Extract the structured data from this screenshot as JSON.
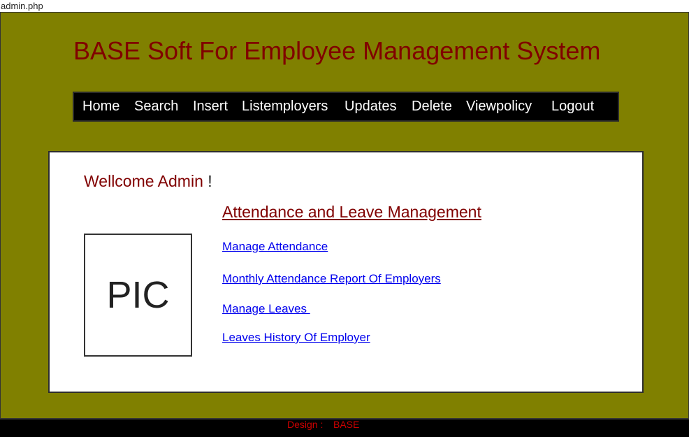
{
  "window": {
    "tab_title": "admin.php"
  },
  "header": {
    "title": "BASE Soft For Employee Management System"
  },
  "nav": {
    "items": [
      {
        "label": "Home"
      },
      {
        "label": "Search"
      },
      {
        "label": "Insert"
      },
      {
        "label": "Listemployers"
      },
      {
        "label": "Updates"
      },
      {
        "label": "Delete"
      },
      {
        "label": "Viewpolicy"
      },
      {
        "label": "Logout"
      }
    ]
  },
  "main": {
    "welcome": "Wellcome Admin",
    "welcome_suffix": "!",
    "pic_label": "PIC",
    "section_title": "Attendance and Leave Management",
    "links": [
      {
        "label": "Manage Attendance"
      },
      {
        "label": "Monthly Attendance Report Of Employers"
      },
      {
        "label": "Manage Leaves "
      },
      {
        "label": "Leaves History Of Employer"
      }
    ]
  },
  "footer": {
    "design_label": "Design : ",
    "design_value": "BASE"
  },
  "colors": {
    "frame_background": "#808000",
    "title_color": "#800000",
    "nav_background": "#000000",
    "link_color": "#0000ee",
    "footer_text": "#cc0000"
  }
}
